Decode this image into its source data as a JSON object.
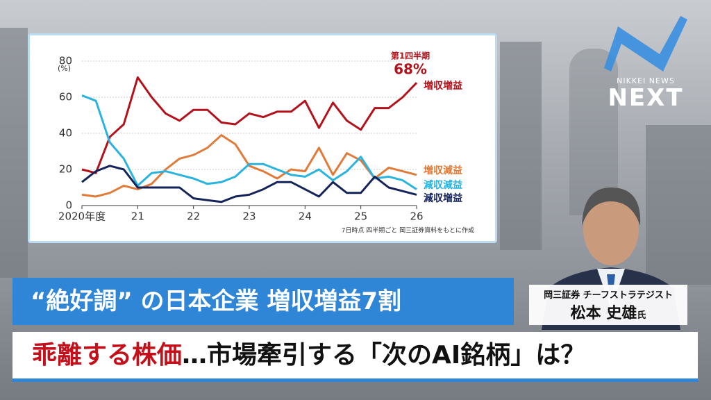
{
  "chart_data": {
    "type": "line",
    "y_unit": "(%)",
    "annotations": [
      "第1四半期",
      "68%"
    ],
    "note": "7日時点 四半期ごと 岡三証券資料をもとに作成",
    "x": [
      2020,
      2020.25,
      2020.5,
      2020.75,
      2021,
      2021.25,
      2021.5,
      2021.75,
      2022,
      2022.25,
      2022.5,
      2022.75,
      2023,
      2023.25,
      2023.5,
      2023.75,
      2024,
      2024.25,
      2024.5,
      2024.75,
      2025,
      2025.25,
      2025.5,
      2025.75,
      2026
    ],
    "xlim": [
      2020,
      2026
    ],
    "xticks": [
      {
        "value": 2020,
        "label": "2020年度"
      },
      {
        "value": 2021,
        "label": "21"
      },
      {
        "value": 2022,
        "label": "22"
      },
      {
        "value": 2023,
        "label": "23"
      },
      {
        "value": 2024,
        "label": "24"
      },
      {
        "value": 2025,
        "label": "25"
      },
      {
        "value": 2026,
        "label": "26"
      }
    ],
    "ylim": [
      0,
      80
    ],
    "yticks": [
      0,
      20,
      40,
      60,
      80
    ],
    "grid": true,
    "series": [
      {
        "name": "増収増益",
        "color": "#b3121b",
        "values": [
          20,
          18,
          38,
          45,
          71,
          60,
          51,
          47,
          53,
          53,
          46,
          45,
          51,
          49,
          52,
          52,
          58,
          43,
          57,
          47,
          42,
          54,
          54,
          60,
          68
        ]
      },
      {
        "name": "増収減益",
        "color": "#e07b39",
        "values": [
          6,
          5,
          7,
          11,
          9,
          12,
          20,
          26,
          28,
          32,
          39,
          34,
          22,
          19,
          15,
          20,
          19,
          32,
          17,
          29,
          25,
          15,
          21,
          19,
          17
        ]
      },
      {
        "name": "減収減益",
        "color": "#2bb3e0",
        "values": [
          61,
          58,
          35,
          26,
          11,
          18,
          19,
          17,
          15,
          12,
          13,
          16,
          23,
          23,
          20,
          17,
          16,
          20,
          14,
          19,
          27,
          15,
          16,
          14,
          9
        ]
      },
      {
        "name": "減収増益",
        "color": "#14235a",
        "values": [
          13,
          19,
          22,
          20,
          10,
          10,
          10,
          10,
          4,
          3,
          2,
          5,
          6,
          9,
          13,
          13,
          9,
          5,
          13,
          7,
          7,
          16,
          10,
          8,
          6
        ]
      }
    ]
  },
  "headline": "“絶好調” の日本企業 増収増益7割",
  "caption": {
    "highlight": "乖離する株価",
    "rest": "…市場牽引する「次のAI銘柄」は？"
  },
  "guest": {
    "title": "岡三証券 チーフストラテジスト",
    "name": "松本 史雄",
    "honorific": "氏"
  },
  "logo": {
    "brand": "NIKKEI NEWS",
    "name": "NEXT"
  }
}
